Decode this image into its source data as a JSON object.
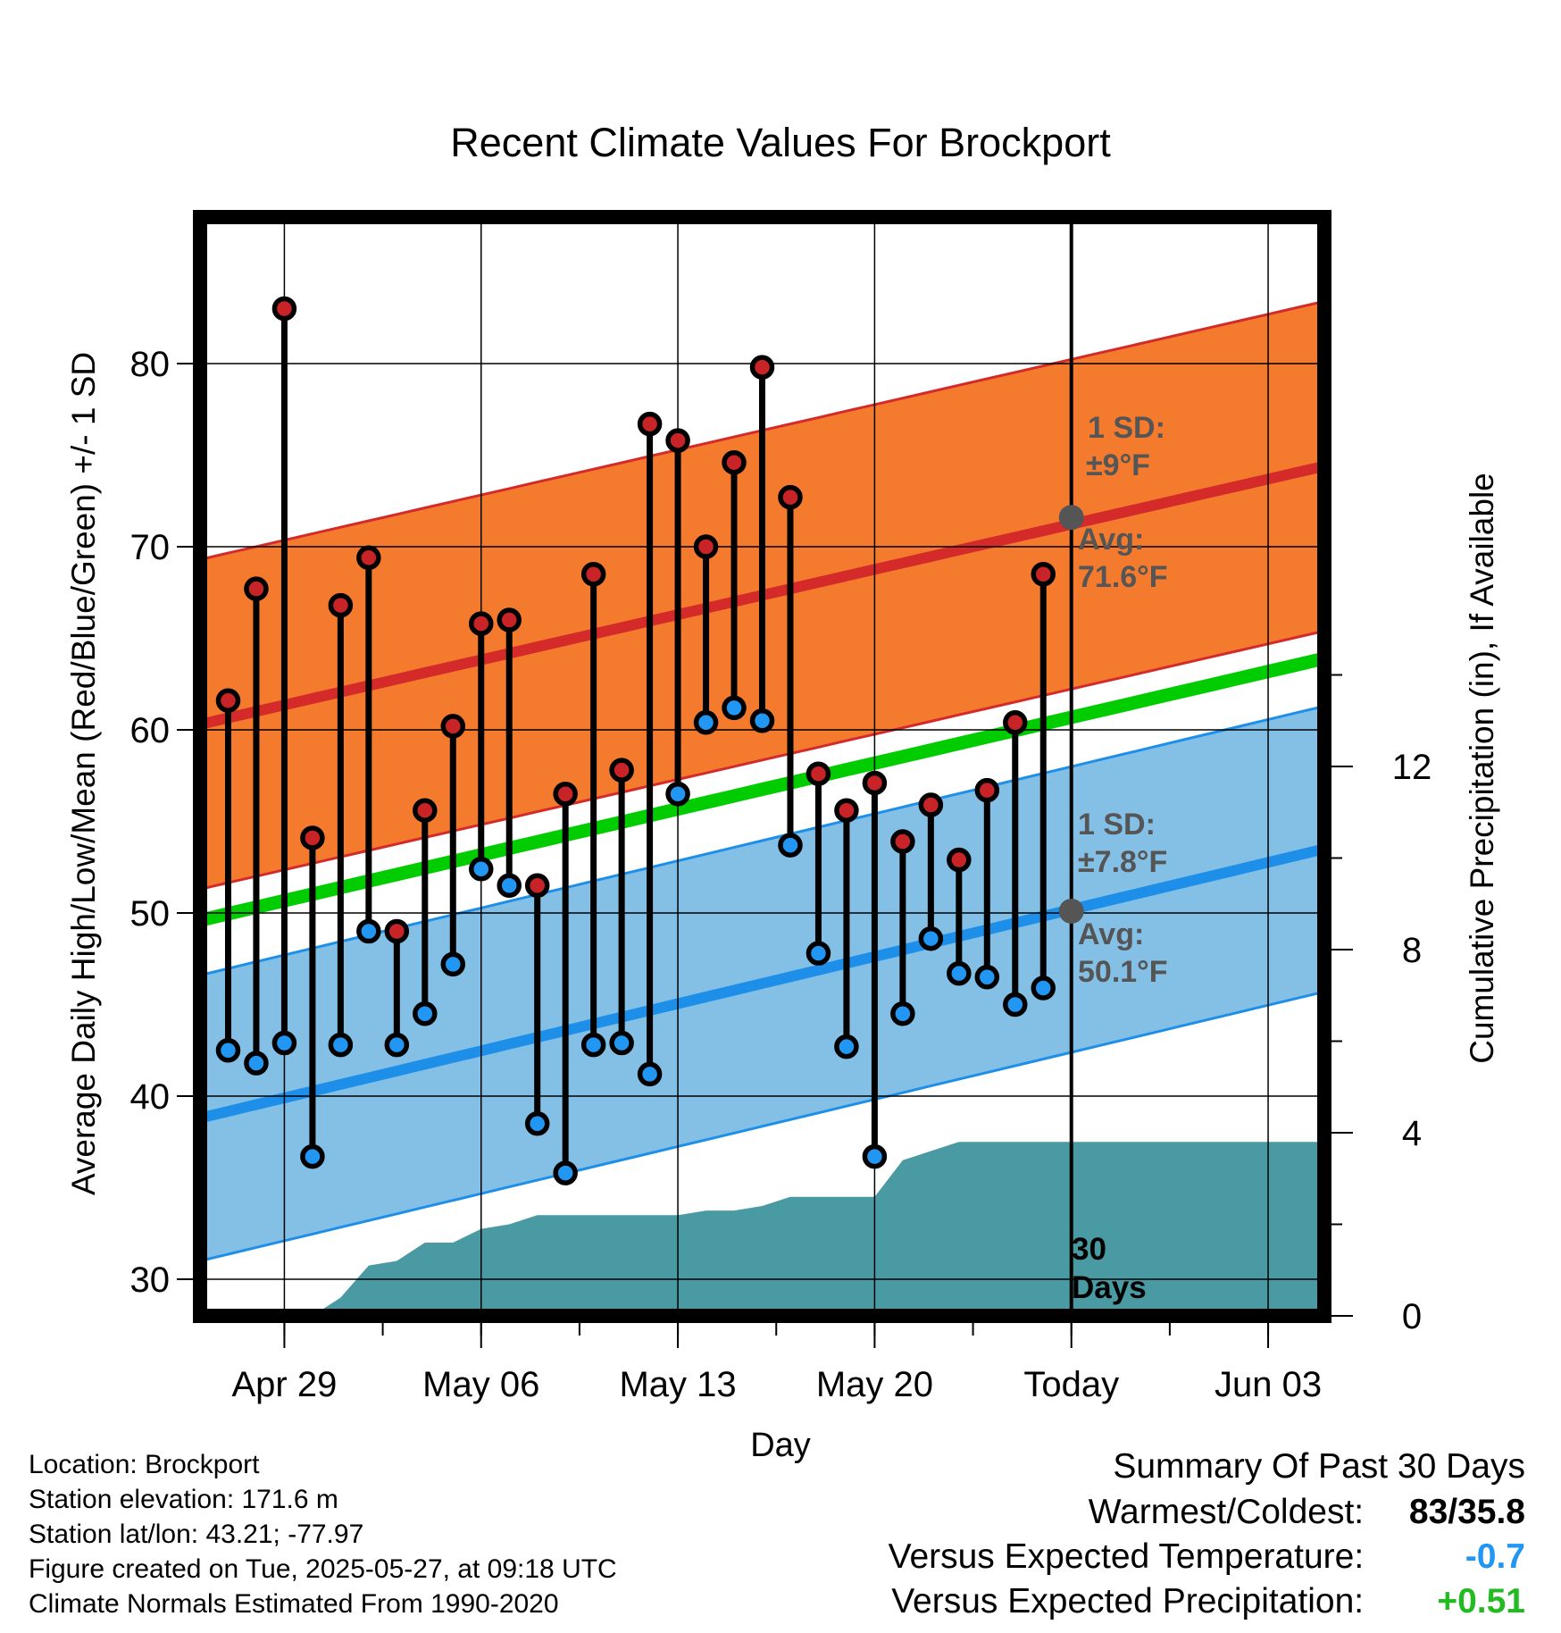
{
  "chart_data": {
    "type": "line",
    "title": "Recent Climate Values For Brockport",
    "xlabel": "Day",
    "ylabel": "Average Daily High/Low/Mean (Red/Blue/Green) +/- 1 SD",
    "y2label": "Cumulative Precipitation (in), If Available",
    "xlim": [
      "2025-04-26",
      "2025-06-05"
    ],
    "ylim": [
      28,
      88
    ],
    "y2lim": [
      0,
      24
    ],
    "x_tick_labels": [
      "Apr 29",
      "May 06",
      "May 13",
      "May 20",
      "Today",
      "Jun 03"
    ],
    "x_tick_dates": [
      "2025-04-29",
      "2025-05-06",
      "2025-05-13",
      "2025-05-20",
      "2025-05-27",
      "2025-06-03"
    ],
    "y_ticks": [
      30,
      40,
      50,
      60,
      70,
      80
    ],
    "y2_ticks": [
      0,
      4,
      8,
      12
    ],
    "grid": true,
    "today": "2025-05-27",
    "dates": [
      "2025-04-27",
      "2025-04-28",
      "2025-04-29",
      "2025-04-30",
      "2025-05-01",
      "2025-05-02",
      "2025-05-03",
      "2025-05-04",
      "2025-05-05",
      "2025-05-06",
      "2025-05-07",
      "2025-05-08",
      "2025-05-09",
      "2025-05-10",
      "2025-05-11",
      "2025-05-12",
      "2025-05-13",
      "2025-05-14",
      "2025-05-15",
      "2025-05-16",
      "2025-05-17",
      "2025-05-18",
      "2025-05-19",
      "2025-05-20",
      "2025-05-21",
      "2025-05-22",
      "2025-05-23",
      "2025-05-24",
      "2025-05-25",
      "2025-05-26"
    ],
    "highs": [
      61.6,
      67.7,
      83.0,
      54.1,
      66.8,
      69.4,
      49.0,
      55.6,
      60.2,
      65.8,
      66.0,
      51.5,
      56.5,
      68.5,
      57.8,
      76.7,
      75.8,
      70.0,
      74.6,
      79.8,
      72.7,
      57.6,
      55.6,
      57.1,
      53.9,
      55.9,
      52.9,
      56.7,
      60.4,
      68.5
    ],
    "lows": [
      42.5,
      41.8,
      42.9,
      36.7,
      42.8,
      49.0,
      42.8,
      44.5,
      47.2,
      52.4,
      51.5,
      38.5,
      35.8,
      42.8,
      42.9,
      41.2,
      56.5,
      60.4,
      61.2,
      60.5,
      53.7,
      47.8,
      42.7,
      36.7,
      44.5,
      48.6,
      46.7,
      46.5,
      45.0,
      45.9
    ],
    "normal_high": {
      "start": 60.3,
      "end": 74.4,
      "sd": 9
    },
    "normal_low": {
      "start": 38.8,
      "end": 53.5,
      "sd": 7.8
    },
    "normal_mean": {
      "start": 49.6,
      "end": 63.9
    },
    "precip_dates": [
      "2025-04-27",
      "2025-04-28",
      "2025-04-29",
      "2025-04-30",
      "2025-05-01",
      "2025-05-02",
      "2025-05-03",
      "2025-05-04",
      "2025-05-05",
      "2025-05-06",
      "2025-05-07",
      "2025-05-08",
      "2025-05-09",
      "2025-05-10",
      "2025-05-11",
      "2025-05-12",
      "2025-05-13",
      "2025-05-14",
      "2025-05-15",
      "2025-05-16",
      "2025-05-17",
      "2025-05-18",
      "2025-05-19",
      "2025-05-20",
      "2025-05-21",
      "2025-05-22",
      "2025-05-23",
      "2025-05-24",
      "2025-05-25",
      "2025-05-26",
      "2025-05-27",
      "2025-06-05"
    ],
    "cumulative_precip": [
      0,
      0,
      0,
      0,
      0.4,
      1.1,
      1.2,
      1.6,
      1.6,
      1.9,
      2.0,
      2.2,
      2.2,
      2.2,
      2.2,
      2.2,
      2.2,
      2.3,
      2.3,
      2.4,
      2.6,
      2.6,
      2.6,
      2.6,
      3.4,
      3.6,
      3.8,
      3.8,
      3.8,
      3.8,
      3.8,
      3.8
    ],
    "annotations": {
      "high_sd": "1 SD:",
      "high_sd_value": "±9°F",
      "high_avg": "Avg:",
      "high_avg_value": "71.6°F",
      "low_sd": "1 SD:",
      "low_sd_value": "±7.8°F",
      "low_avg": "Avg:",
      "low_avg_value": "50.1°F",
      "days_line1": "30",
      "days_line2": "Days"
    },
    "colors": {
      "high_band": "#f47b2e",
      "high_line": "#d42a2a",
      "low_band": "#84c0e6",
      "low_line": "#1e8fe8",
      "mean_line": "#00cc00",
      "precip": "#4a9aa4",
      "high_dot": "#c82428",
      "low_dot": "#2196f3",
      "today_dot": "#555555",
      "annotation": "#555555"
    }
  },
  "info": {
    "location": "Location: Brockport",
    "elevation": "Station elevation: 171.6 m",
    "latlon": "Station lat/lon: 43.21; -77.97",
    "created": "Figure created on Tue, 2025-05-27, at 09:18 UTC",
    "normals": "Climate Normals Estimated From 1990-2020"
  },
  "summary": {
    "title": "Summary Of Past 30 Days",
    "warmest_coldest_label": "Warmest/Coldest:",
    "warmest_coldest_value": "83/35.8",
    "temp_label": "Versus Expected Temperature:",
    "temp_value": "-0.7",
    "temp_color": "#2196f3",
    "precip_label": "Versus Expected Precipitation:",
    "precip_value": "+0.51",
    "precip_color": "#22bb22"
  }
}
